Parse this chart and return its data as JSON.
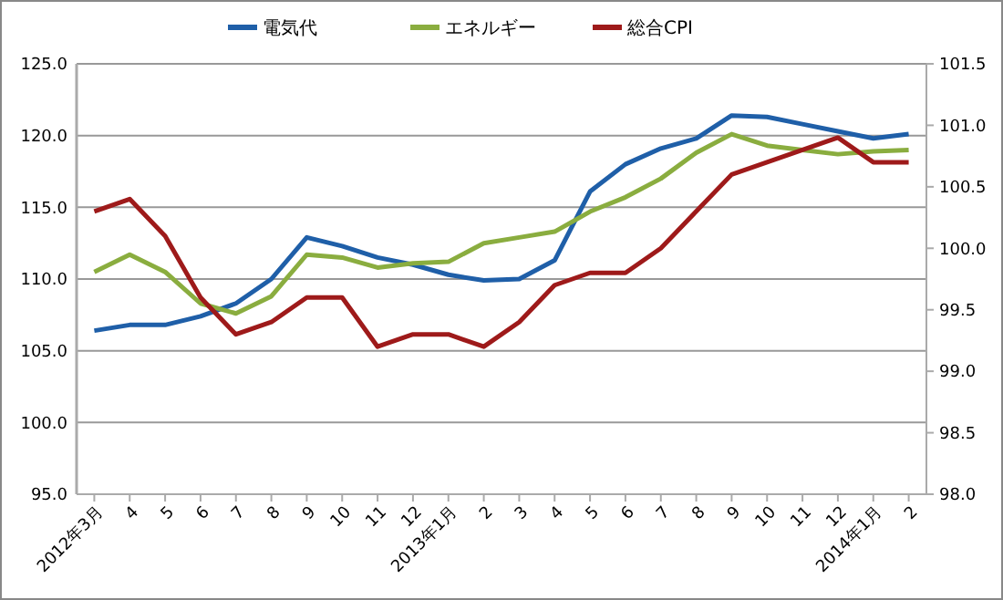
{
  "chart_data": {
    "type": "line",
    "categories": [
      "2012年3月",
      "4",
      "5",
      "6",
      "7",
      "8",
      "9",
      "10",
      "11",
      "12",
      "2013年1月",
      "2",
      "3",
      "4",
      "5",
      "6",
      "7",
      "8",
      "9",
      "10",
      "11",
      "12",
      "2014年1月",
      "2"
    ],
    "series": [
      {
        "name": "電気代",
        "color": "#1f5fa8",
        "values": [
          106.4,
          106.8,
          106.8,
          107.4,
          108.3,
          110.0,
          112.9,
          112.3,
          111.5,
          111.0,
          110.3,
          109.9,
          110.0,
          111.3,
          116.1,
          118.0,
          119.1,
          119.8,
          121.4,
          121.3,
          120.8,
          120.3,
          119.8,
          120.1
        ]
      },
      {
        "name": "エネルギー",
        "color": "#8aad3f",
        "values": [
          110.5,
          111.7,
          110.5,
          108.3,
          107.6,
          108.8,
          111.7,
          111.5,
          110.8,
          111.1,
          111.2,
          112.5,
          112.9,
          113.3,
          114.7,
          115.7,
          117.0,
          118.8,
          120.1,
          119.3,
          119.0,
          118.7,
          118.9,
          119.0
        ]
      },
      {
        "name": "総合CPI",
        "color": "#9e1a1a",
        "axis": "y2",
        "values": [
          100.3,
          100.4,
          100.1,
          99.6,
          99.3,
          99.4,
          99.6,
          99.6,
          99.2,
          99.3,
          99.3,
          99.2,
          99.4,
          99.7,
          99.8,
          99.8,
          100.0,
          100.3,
          100.6,
          100.7,
          100.8,
          100.9,
          100.7,
          100.7
        ]
      }
    ],
    "ylim": [
      95,
      125
    ],
    "yticks": [
      {
        "value": 95,
        "label": "95.0"
      },
      {
        "value": 100,
        "label": "100.0"
      },
      {
        "value": 105,
        "label": "105.0"
      },
      {
        "value": 110,
        "label": "110.0"
      },
      {
        "value": 115,
        "label": "115.0"
      },
      {
        "value": 120,
        "label": "120.0"
      },
      {
        "value": 125,
        "label": "125.0"
      }
    ],
    "y2lim": [
      98,
      101.5
    ],
    "y2ticks": [
      {
        "value": 98,
        "label": "98.0"
      },
      {
        "value": 98.5,
        "label": "98.5"
      },
      {
        "value": 99,
        "label": "99.0"
      },
      {
        "value": 99.5,
        "label": "99.5"
      },
      {
        "value": 100,
        "label": "100.0"
      },
      {
        "value": 100.5,
        "label": "100.5"
      },
      {
        "value": 101,
        "label": "101.0"
      },
      {
        "value": 101.5,
        "label": "101.5"
      }
    ],
    "grid": "y",
    "legend": "top",
    "marker": "none",
    "line_style": "solid"
  }
}
